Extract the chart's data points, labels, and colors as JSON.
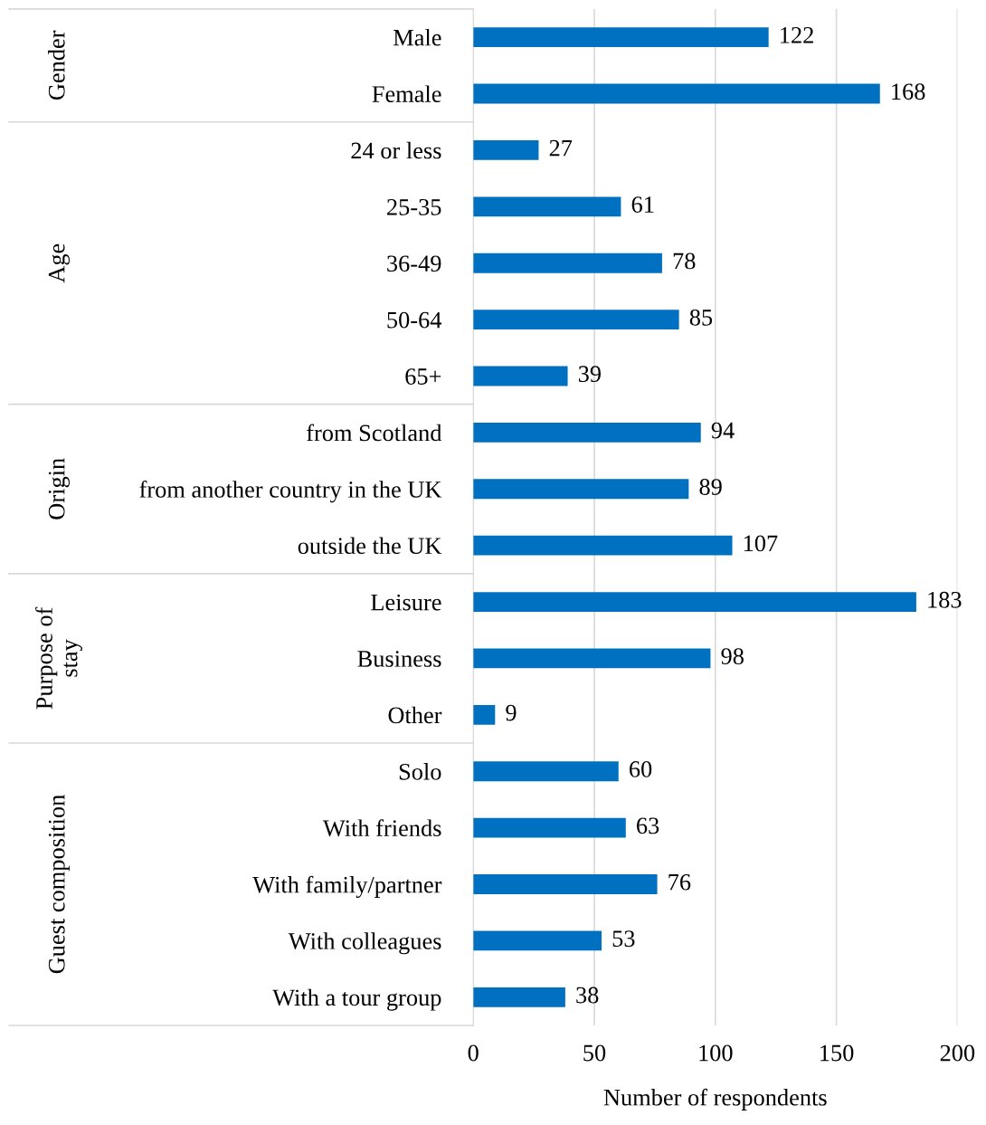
{
  "chart_data": {
    "type": "bar",
    "orientation": "horizontal",
    "xlabel": "Number of respondents",
    "categories": [
      "Male",
      "Female",
      "24 or less",
      "25-35",
      "36-49",
      "50-64",
      "65+",
      "from Scotland",
      "from another country in the UK",
      "outside the UK",
      "Leisure",
      "Business",
      "Other",
      "Solo",
      "With friends",
      "With family/partner",
      "With colleagues",
      "With a tour group"
    ],
    "values": [
      122,
      168,
      27,
      61,
      78,
      85,
      39,
      94,
      89,
      107,
      183,
      98,
      9,
      60,
      63,
      76,
      53,
      38
    ],
    "color": "#0070c0",
    "xlim": [
      0,
      200
    ],
    "xticks": [
      0,
      50,
      100,
      150,
      200
    ],
    "grid": "x",
    "data_labels": true,
    "annotations": [
      "Gender",
      "Age",
      "Origin",
      "Purpose of\nstay",
      "Guest composition"
    ]
  }
}
